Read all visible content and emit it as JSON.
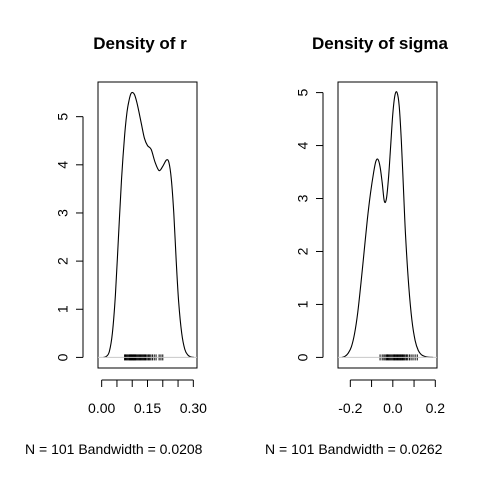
{
  "chart_data": [
    {
      "type": "line",
      "title": "Density of r",
      "xlabel": "N = 101   Bandwidth = 0.0208",
      "ylabel": "",
      "xlim": [
        0.0,
        0.3
      ],
      "ylim": [
        0,
        5.5
      ],
      "x_ticks": [
        "0.00",
        "0.15",
        "0.30"
      ],
      "x_tick_values": [
        0.0,
        0.15,
        0.3
      ],
      "x_minor_ticks": [
        0.05,
        0.1,
        0.2,
        0.25
      ],
      "y_ticks": [
        "0",
        "1",
        "2",
        "3",
        "4",
        "5"
      ],
      "y_tick_values": [
        0,
        1,
        2,
        3,
        4,
        5
      ],
      "series": [
        {
          "x": [
            0.006,
            0.015,
            0.025,
            0.035,
            0.045,
            0.055,
            0.065,
            0.075,
            0.083,
            0.09,
            0.096,
            0.102,
            0.108,
            0.115,
            0.122,
            0.13,
            0.14,
            0.15,
            0.162,
            0.175,
            0.188,
            0.2,
            0.212,
            0.22,
            0.228,
            0.236,
            0.244,
            0.252,
            0.262,
            0.272,
            0.282,
            0.292,
            0.302
          ],
          "y": [
            0.0,
            0.02,
            0.12,
            0.5,
            1.3,
            2.5,
            3.7,
            4.6,
            5.1,
            5.35,
            5.48,
            5.5,
            5.45,
            5.3,
            5.1,
            4.85,
            4.55,
            4.4,
            4.32,
            4.05,
            3.88,
            3.97,
            4.1,
            4.05,
            3.7,
            3.0,
            2.0,
            1.15,
            0.5,
            0.17,
            0.05,
            0.01,
            0.0
          ]
        }
      ],
      "rug": [
        0.075,
        0.078,
        0.081,
        0.084,
        0.087,
        0.09,
        0.092,
        0.094,
        0.096,
        0.098,
        0.1,
        0.102,
        0.104,
        0.106,
        0.108,
        0.11,
        0.112,
        0.115,
        0.118,
        0.121,
        0.124,
        0.127,
        0.13,
        0.133,
        0.136,
        0.139,
        0.142,
        0.145,
        0.149,
        0.153,
        0.157,
        0.161,
        0.166,
        0.172,
        0.178,
        0.188,
        0.194,
        0.2
      ]
    },
    {
      "type": "line",
      "title": "Density of sigma",
      "xlabel": "N = 101   Bandwidth = 0.0262",
      "ylabel": "",
      "xlim": [
        -0.25,
        0.2
      ],
      "ylim": [
        0,
        5
      ],
      "x_ticks": [
        "-0.2",
        "0.0",
        "0.2"
      ],
      "x_tick_values": [
        -0.2,
        0.0,
        0.2
      ],
      "x_minor_ticks": [
        -0.1,
        0.1
      ],
      "y_ticks": [
        "0",
        "1",
        "2",
        "3",
        "4",
        "5"
      ],
      "y_tick_values": [
        0,
        1,
        2,
        3,
        4,
        5
      ],
      "series": [
        {
          "x": [
            -0.24,
            -0.225,
            -0.21,
            -0.195,
            -0.18,
            -0.165,
            -0.15,
            -0.135,
            -0.12,
            -0.105,
            -0.09,
            -0.08,
            -0.07,
            -0.06,
            -0.05,
            -0.04,
            -0.03,
            -0.02,
            -0.01,
            0.0,
            0.01,
            0.02,
            0.03,
            0.04,
            0.05,
            0.06,
            0.075,
            0.09,
            0.105,
            0.12,
            0.135,
            0.15,
            0.165,
            0.18,
            0.19
          ],
          "y": [
            0.0,
            0.02,
            0.08,
            0.2,
            0.45,
            0.85,
            1.4,
            2.0,
            2.6,
            3.1,
            3.5,
            3.7,
            3.74,
            3.6,
            3.3,
            2.95,
            3.0,
            3.4,
            4.0,
            4.6,
            4.95,
            5.0,
            4.75,
            4.1,
            3.2,
            2.3,
            1.35,
            0.7,
            0.32,
            0.13,
            0.05,
            0.02,
            0.006,
            0.002,
            0.0
          ]
        }
      ],
      "rug": [
        -0.06,
        -0.05,
        -0.042,
        -0.036,
        -0.03,
        -0.025,
        -0.02,
        -0.015,
        -0.01,
        -0.005,
        0.0,
        0.004,
        0.008,
        0.012,
        0.016,
        0.02,
        0.024,
        0.028,
        0.032,
        0.036,
        0.04,
        0.044,
        0.048,
        0.053,
        0.058,
        0.064,
        0.07,
        0.078,
        0.086,
        0.095,
        0.105,
        0.115
      ]
    }
  ]
}
